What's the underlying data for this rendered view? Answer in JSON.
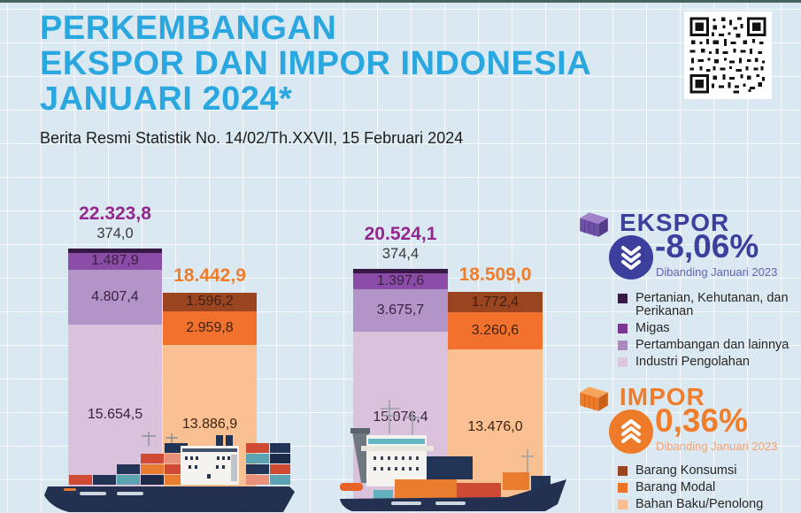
{
  "header": {
    "title_lines": [
      "PERKEMBANGAN",
      "EKSPOR DAN IMPOR INDONESIA",
      "JANUARI 2024*"
    ],
    "title_color": "#2ba7e0",
    "subtitle": "Berita Resmi Statistik No. 14/02/Th.XXVII, 15 Februari 2024"
  },
  "chart_data": {
    "type": "bar",
    "stacked": true,
    "legend_position": "right",
    "groups": [
      {
        "export": {
          "total_label": "22.323,8",
          "total_value": 22323.8,
          "segments": [
            {
              "name": "Pertanian, Kehutanan, dan Perikanan",
              "label": "374,0",
              "value": 374.0,
              "color": "#371743",
              "label_above_bar": true
            },
            {
              "name": "Migas",
              "label": "1.487,9",
              "value": 1487.9,
              "color": "#8a4ca6"
            },
            {
              "name": "Pertambangan dan lainnya",
              "label": "4.807,4",
              "value": 4807.4,
              "color": "#b294c8"
            },
            {
              "name": "Industri Pengolahan",
              "label": "15.654,5",
              "value": 15654.5,
              "color": "#dac2dc"
            }
          ]
        },
        "import": {
          "total_label": "18.442,9",
          "total_value": 18442.9,
          "segments": [
            {
              "name": "Barang Konsumsi",
              "label": "1.596,2",
              "value": 1596.2,
              "color": "#9a4420"
            },
            {
              "name": "Barang Modal",
              "label": "2.959,8",
              "value": 2959.8,
              "color": "#f2722d"
            },
            {
              "name": "Bahan Baku/Penolong",
              "label": "13.886,9",
              "value": 13886.9,
              "color": "#f9c091"
            }
          ]
        }
      },
      {
        "export": {
          "total_label": "20.524,1",
          "total_value": 20524.1,
          "segments": [
            {
              "name": "Pertanian, Kehutanan, dan Perikanan",
              "label": "374,4",
              "value": 374.4,
              "color": "#371743",
              "label_above_bar": true
            },
            {
              "name": "Migas",
              "label": "1.397,6",
              "value": 1397.6,
              "color": "#8a4ca6"
            },
            {
              "name": "Pertambangan dan lainnya",
              "label": "3.675,7",
              "value": 3675.7,
              "color": "#b294c8"
            },
            {
              "name": "Industri Pengolahan",
              "label": "15.076,4",
              "value": 15076.4,
              "color": "#dac2dc"
            }
          ]
        },
        "import": {
          "total_label": "18.509,0",
          "total_value": 18509.0,
          "segments": [
            {
              "name": "Barang Konsumsi",
              "label": "1.772,4",
              "value": 1772.4,
              "color": "#9a4420"
            },
            {
              "name": "Barang Modal",
              "label": "3.260,6",
              "value": 3260.6,
              "color": "#f2722d"
            },
            {
              "name": "Bahan Baku/Penolong",
              "label": "13.476,0",
              "value": 13476.0,
              "color": "#f9c091"
            }
          ]
        }
      }
    ]
  },
  "panels": {
    "ekspor": {
      "label": "EKSPOR",
      "pct": "-8,06%",
      "note": "Dibanding Januari 2023",
      "accent": "#3d3f9d",
      "direction": "down",
      "legend": [
        {
          "label": "Pertanian, Kehutanan, dan Perikanan",
          "color": "#371743"
        },
        {
          "label": "Migas",
          "color": "#7c3594"
        },
        {
          "label": "Pertambangan dan lainnya",
          "color": "#ab8bbe"
        },
        {
          "label": "Industri Pengolahan",
          "color": "#ddc6de"
        }
      ]
    },
    "impor": {
      "label": "IMPOR",
      "pct": "0,36%",
      "note": "Dibanding Januari 2023",
      "accent": "#ef7d2b",
      "direction": "up",
      "legend": [
        {
          "label": "Barang Konsumsi",
          "color": "#9a4420"
        },
        {
          "label": "Barang Modal",
          "color": "#ee7226"
        },
        {
          "label": "Bahan Baku/Penolong",
          "color": "#f7be92"
        }
      ]
    }
  }
}
